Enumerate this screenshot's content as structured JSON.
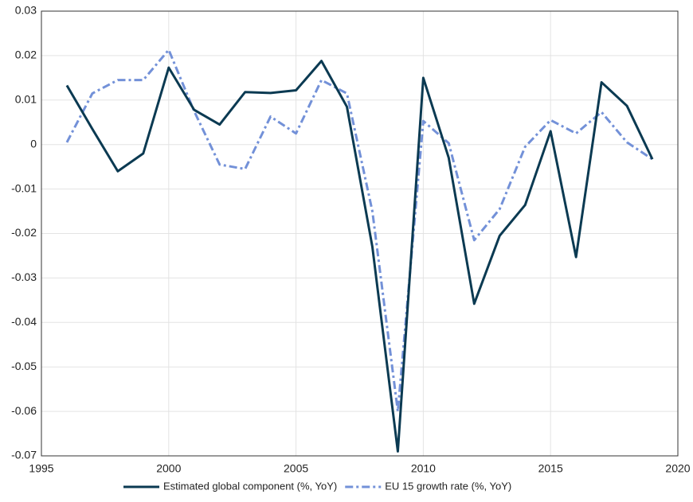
{
  "chart_data": {
    "type": "line",
    "x": [
      1996,
      1997,
      1998,
      1999,
      2000,
      2001,
      2002,
      2003,
      2004,
      2005,
      2006,
      2007,
      2008,
      2009,
      2010,
      2011,
      2012,
      2013,
      2014,
      2015,
      2016,
      2017,
      2018,
      2019
    ],
    "series": [
      {
        "name": "Estimated global component (%, YoY)",
        "color": "#0b3a52",
        "style": "solid",
        "values": [
          0.0133,
          0.0035,
          -0.006,
          -0.002,
          0.0173,
          0.0078,
          0.0045,
          0.0118,
          0.0116,
          0.0122,
          0.0188,
          0.0085,
          -0.023,
          -0.069,
          0.015,
          -0.003,
          -0.0358,
          -0.0205,
          -0.0136,
          0.003,
          -0.0253,
          0.014,
          0.0087,
          -0.0033
        ]
      },
      {
        "name": "EU 15 growth rate (%, YoY)",
        "color": "#7391d8",
        "style": "dashdot",
        "values": [
          0.0005,
          0.0115,
          0.0145,
          0.0145,
          0.0213,
          0.0075,
          -0.0045,
          -0.0055,
          0.0063,
          0.0025,
          0.0145,
          0.0115,
          -0.015,
          -0.06,
          0.0053,
          0.0003,
          -0.0215,
          -0.0145,
          -0.0005,
          0.0055,
          0.0025,
          0.0073,
          0.0005,
          -0.0033
        ]
      }
    ],
    "xlim": [
      1995,
      2020
    ],
    "xticks": [
      1995,
      2000,
      2005,
      2010,
      2015,
      2020
    ],
    "ylim": [
      -0.07,
      0.03
    ],
    "yticks": [
      -0.07,
      -0.06,
      -0.05,
      -0.04,
      -0.03,
      -0.02,
      -0.01,
      0,
      0.01,
      0.02,
      0.03
    ],
    "grid": true,
    "legend": "bottom"
  }
}
